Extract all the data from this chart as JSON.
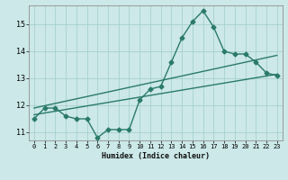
{
  "xlabel": "Humidex (Indice chaleur)",
  "ylabel": "",
  "bg_color": "#cce8e8",
  "grid_color": "#a0cccc",
  "line_color": "#2a7a6a",
  "xlim": [
    -0.5,
    23.5
  ],
  "ylim": [
    10.7,
    15.7
  ],
  "x_ticks": [
    0,
    1,
    2,
    3,
    4,
    5,
    6,
    7,
    8,
    9,
    10,
    11,
    12,
    13,
    14,
    15,
    16,
    17,
    18,
    19,
    20,
    21,
    22,
    23
  ],
  "y_ticks": [
    11,
    12,
    13,
    14,
    15
  ],
  "main_x": [
    0,
    1,
    2,
    3,
    4,
    5,
    6,
    7,
    8,
    9,
    10,
    11,
    12,
    13,
    14,
    15,
    16,
    17,
    18,
    19,
    20,
    21,
    22,
    23
  ],
  "main_y": [
    11.5,
    11.9,
    11.9,
    11.6,
    11.5,
    11.5,
    10.8,
    11.1,
    11.1,
    11.1,
    12.2,
    12.6,
    12.7,
    13.6,
    14.5,
    15.1,
    15.5,
    14.9,
    14.0,
    13.9,
    13.9,
    13.6,
    13.2,
    13.1
  ],
  "trend1_x": [
    0,
    23
  ],
  "trend1_y": [
    11.65,
    13.15
  ],
  "trend2_x": [
    0,
    23
  ],
  "trend2_y": [
    11.9,
    13.85
  ],
  "marker_size": 2.5,
  "line_width": 1.0
}
